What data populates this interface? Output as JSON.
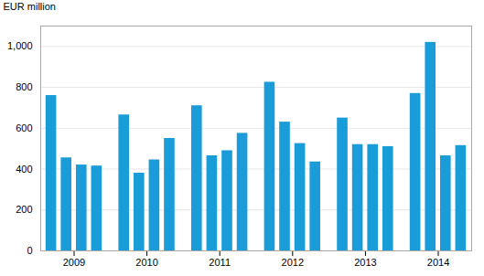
{
  "chart_data": {
    "type": "bar",
    "ylabel": "EUR million",
    "categories": [
      "2009",
      "2010",
      "2011",
      "2012",
      "2013",
      "2014"
    ],
    "series": [
      {
        "values": [
          760,
          665,
          710,
          825,
          650,
          770
        ]
      },
      {
        "values": [
          455,
          380,
          465,
          630,
          520,
          1020
        ]
      },
      {
        "values": [
          420,
          445,
          490,
          525,
          520,
          465
        ]
      },
      {
        "values": [
          415,
          550,
          575,
          435,
          510,
          515
        ]
      }
    ],
    "color": "#1a9cd8",
    "ylim": [
      0,
      1100
    ],
    "yticks": [
      0,
      200,
      400,
      600,
      800,
      1000
    ],
    "grid": true
  }
}
